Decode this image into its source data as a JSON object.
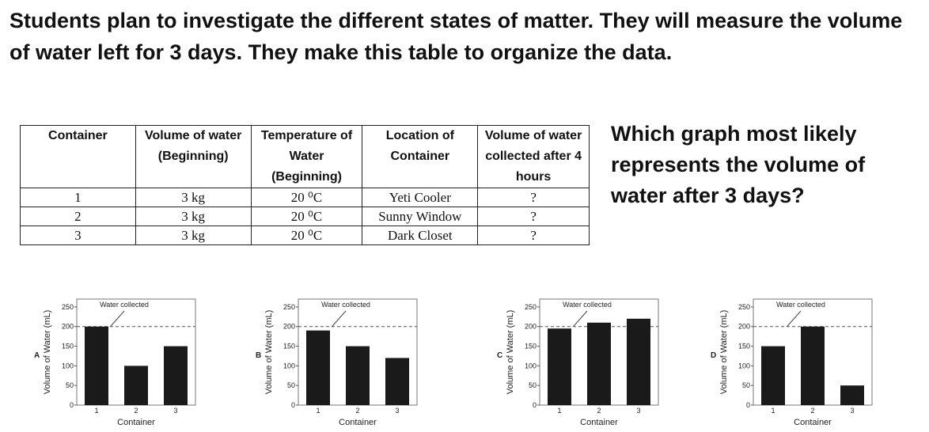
{
  "intro": "Students plan to investigate the different states of matter. They will measure the volume of water left  for 3 days. They make this table to organize the data.",
  "question": "Which graph most likely represents the volume of water after 3 days?",
  "table": {
    "header": [
      "Container",
      "Volume of water (Beginning)",
      "Temperature of Water (Beginning)",
      "Location of Container",
      "Volume of water collected after 4 hours"
    ],
    "rows": [
      [
        "1",
        "3 kg",
        "20 ⁰C",
        "Yeti Cooler",
        "?"
      ],
      [
        "2",
        "3 kg",
        "20 ⁰C",
        "Sunny Window",
        "?"
      ],
      [
        "3",
        "3 kg",
        "20 ⁰C",
        "Dark Closet",
        "?"
      ]
    ]
  },
  "chart_data": [
    {
      "type": "bar",
      "label": "A",
      "annotation": "Water collected",
      "y_label": "Volume of Water (mL)",
      "x_label": "Container",
      "categories": [
        "1",
        "2",
        "3"
      ],
      "values": [
        200,
        100,
        150
      ],
      "color": "#1a1a1a",
      "reference_line": 200,
      "ylim": [
        0,
        270
      ],
      "yticks": [
        0,
        50,
        100,
        150,
        200,
        250
      ]
    },
    {
      "type": "bar",
      "label": "B",
      "annotation": "Water collected",
      "y_label": "Volume of Water (mL)",
      "x_label": "Container",
      "categories": [
        "1",
        "2",
        "3"
      ],
      "values": [
        190,
        150,
        120
      ],
      "color": "#1a1a1a",
      "reference_line": 200,
      "ylim": [
        0,
        270
      ],
      "yticks": [
        0,
        50,
        100,
        150,
        200,
        250
      ]
    },
    {
      "type": "bar",
      "label": "C",
      "annotation": "Water collected",
      "y_label": "Volume of Water (mL)",
      "x_label": "Container",
      "categories": [
        "1",
        "2",
        "3"
      ],
      "values": [
        195,
        210,
        220
      ],
      "color": "#1a1a1a",
      "reference_line": 200,
      "ylim": [
        0,
        270
      ],
      "yticks": [
        0,
        50,
        100,
        150,
        200,
        250
      ]
    },
    {
      "type": "bar",
      "label": "D",
      "annotation": "Water collected",
      "y_label": "Volume of Water (mL)",
      "x_label": "Container",
      "categories": [
        "1",
        "2",
        "3"
      ],
      "values": [
        150,
        200,
        50
      ],
      "color": "#1a1a1a",
      "reference_line": 200,
      "ylim": [
        0,
        270
      ],
      "yticks": [
        0,
        50,
        100,
        150,
        200,
        250
      ]
    }
  ]
}
